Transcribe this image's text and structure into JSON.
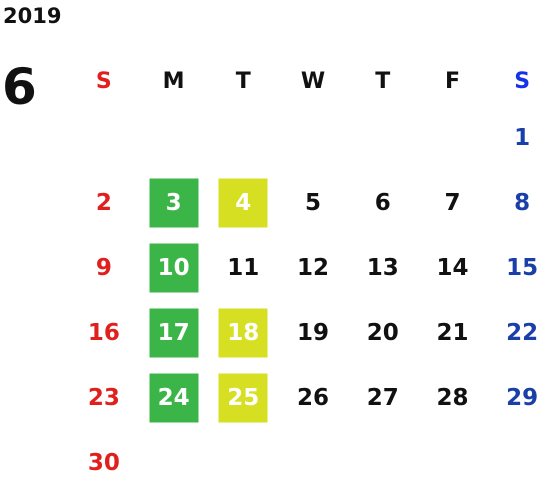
{
  "header": {
    "year": "2019",
    "month": "6"
  },
  "weekdays": [
    "S",
    "M",
    "T",
    "W",
    "T",
    "F",
    "S"
  ],
  "weeks": [
    [
      "",
      "",
      "",
      "",
      "",
      "",
      "1"
    ],
    [
      "2",
      "3",
      "4",
      "5",
      "6",
      "7",
      "8"
    ],
    [
      "9",
      "10",
      "11",
      "12",
      "13",
      "14",
      "15"
    ],
    [
      "16",
      "17",
      "18",
      "19",
      "20",
      "21",
      "22"
    ],
    [
      "23",
      "24",
      "25",
      "26",
      "27",
      "28",
      "29"
    ],
    [
      "30",
      "",
      "",
      "",
      "",
      "",
      ""
    ]
  ],
  "highlights": {
    "green": [
      "3",
      "10",
      "17",
      "24"
    ],
    "yellow": [
      "4",
      "18",
      "25"
    ]
  },
  "colors": {
    "sunday": "#e0201c",
    "saturday": "#1a3fa8",
    "saturday_header": "#1432e6",
    "green": "#3cb548",
    "yellow": "#d6df21",
    "text": "#111111"
  }
}
